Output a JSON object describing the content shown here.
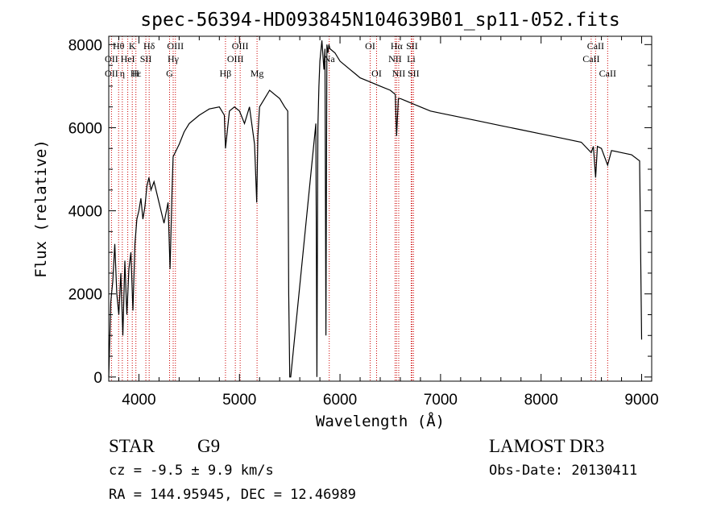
{
  "chart_data": {
    "type": "line",
    "title": "spec-56394-HD093845N104639B01_sp11-052.fits",
    "xlabel": "Wavelength (Å)",
    "ylabel": "Flux (relative)",
    "xlim": [
      3700,
      9100
    ],
    "ylim": [
      -100,
      8200
    ],
    "xticks": [
      4000,
      5000,
      6000,
      7000,
      8000,
      9000
    ],
    "yticks": [
      0,
      2000,
      4000,
      6000,
      8000
    ],
    "grid": false,
    "series": [
      {
        "x": [
          3700,
          3720,
          3740,
          3760,
          3780,
          3800,
          3820,
          3840,
          3860,
          3880,
          3900,
          3920,
          3940,
          3960,
          3980,
          4000,
          4020,
          4040,
          4060,
          4080,
          4100,
          4120,
          4150,
          4200,
          4250,
          4290,
          4310,
          4330,
          4340,
          4360,
          4400,
          4450,
          4500,
          4600,
          4700,
          4800,
          4850,
          4861,
          4900,
          4950,
          5000,
          5050,
          5100,
          5150,
          5172,
          5183,
          5200,
          5250,
          5300,
          5350,
          5400,
          5450,
          5480,
          5490,
          5500,
          5510,
          5760,
          5770,
          5780,
          5790,
          5800,
          5820,
          5840,
          5850,
          5860,
          5870,
          5880,
          5890,
          5900,
          5950,
          6000,
          6050,
          6100,
          6150,
          6200,
          6300,
          6400,
          6500,
          6550,
          6563,
          6580,
          6600,
          6700,
          6800,
          6900,
          7000,
          7200,
          7400,
          7600,
          7800,
          8000,
          8200,
          8400,
          8498,
          8520,
          8542,
          8560,
          8600,
          8662,
          8700,
          8800,
          8900,
          8980,
          9000
        ],
        "y": [
          0,
          1800,
          2300,
          3200,
          2000,
          1500,
          2500,
          1000,
          2800,
          1500,
          2600,
          3000,
          1600,
          3200,
          3800,
          4000,
          4300,
          3800,
          4100,
          4600,
          4800,
          4500,
          4700,
          4200,
          3700,
          4200,
          2600,
          4500,
          5300,
          5400,
          5600,
          5900,
          6100,
          6300,
          6450,
          6500,
          6300,
          5500,
          6400,
          6500,
          6400,
          6100,
          6500,
          5600,
          4200,
          5800,
          6500,
          6700,
          6900,
          6800,
          6700,
          6500,
          6400,
          2000,
          0,
          0,
          6100,
          0,
          6000,
          7000,
          7600,
          8100,
          7400,
          7900,
          1000,
          8000,
          7800,
          8000,
          7900,
          7800,
          7600,
          7500,
          7400,
          7300,
          7200,
          7100,
          7000,
          6900,
          6800,
          5800,
          6700,
          6700,
          6600,
          6500,
          6400,
          6350,
          6250,
          6150,
          6050,
          5950,
          5850,
          5750,
          5650,
          5400,
          5550,
          4800,
          5550,
          5500,
          5100,
          5450,
          5400,
          5350,
          5200,
          900
        ]
      }
    ],
    "line_ids": [
      {
        "label": "Hθ",
        "wave": 3798,
        "row": 1
      },
      {
        "label": "OII",
        "wave": 3727,
        "row": 2
      },
      {
        "label": "OII",
        "wave": 3727,
        "row": 3
      },
      {
        "label": "K",
        "wave": 3934,
        "row": 1
      },
      {
        "label": "Hδ",
        "wave": 4102,
        "row": 1
      },
      {
        "label": "HeI",
        "wave": 3889,
        "row": 2
      },
      {
        "label": "SII",
        "wave": 4069,
        "row": 2
      },
      {
        "label": "Hε",
        "wave": 3970,
        "row": 3
      },
      {
        "label": "η",
        "wave": 3835,
        "row": 3
      },
      {
        "label": "H",
        "wave": 3968,
        "row": 3
      },
      {
        "label": "OIII",
        "wave": 4363,
        "row": 1
      },
      {
        "label": "Hγ",
        "wave": 4341,
        "row": 2
      },
      {
        "label": "G",
        "wave": 4305,
        "row": 3
      },
      {
        "label": "OIII",
        "wave": 5007,
        "row": 1
      },
      {
        "label": "OIII",
        "wave": 4959,
        "row": 2
      },
      {
        "label": "Hβ",
        "wave": 4861,
        "row": 3
      },
      {
        "label": "Mg",
        "wave": 5175,
        "row": 3
      },
      {
        "label": "Na",
        "wave": 5893,
        "row": 2
      },
      {
        "label": "OI",
        "wave": 6300,
        "row": 1
      },
      {
        "label": "OI",
        "wave": 6364,
        "row": 3
      },
      {
        "label": "Hα",
        "wave": 6563,
        "row": 1
      },
      {
        "label": "SII",
        "wave": 6716,
        "row": 1
      },
      {
        "label": "NII",
        "wave": 6548,
        "row": 2
      },
      {
        "label": "Li",
        "wave": 6708,
        "row": 2
      },
      {
        "label": "NII",
        "wave": 6584,
        "row": 3
      },
      {
        "label": "SII",
        "wave": 6731,
        "row": 3
      },
      {
        "label": "CaII",
        "wave": 8542,
        "row": 1
      },
      {
        "label": "CaII",
        "wave": 8498,
        "row": 2
      },
      {
        "label": "CaII",
        "wave": 8662,
        "row": 3
      }
    ],
    "marker_lines": [
      3727,
      3798,
      3835,
      3889,
      3934,
      3970,
      4069,
      4102,
      4305,
      4341,
      4363,
      4861,
      4959,
      5007,
      5175,
      5893,
      6300,
      6364,
      6548,
      6563,
      6584,
      6708,
      6716,
      6731,
      8498,
      8542,
      8662
    ],
    "line_color": "#000000",
    "marker_color": "#cc0000"
  },
  "info": {
    "object_type": "STAR",
    "subclass": "G9",
    "survey": "LAMOST DR3",
    "cz": "cz = -9.5 ± 9.9 km/s",
    "obs_date": "Obs-Date: 20130411",
    "radec": "RA = 144.95945, DEC =  12.46989"
  }
}
